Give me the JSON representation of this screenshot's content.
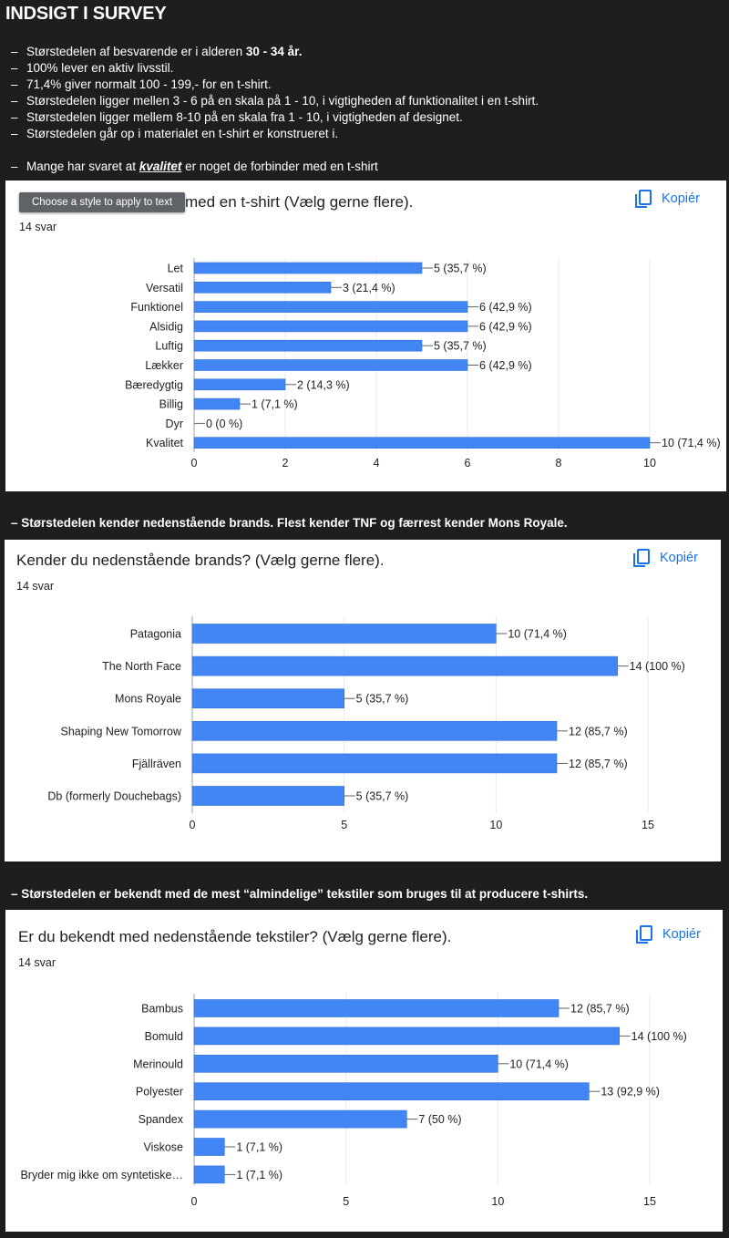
{
  "page": {
    "title": "INDSIGT I SURVEY",
    "bullets": [
      {
        "dash": "–",
        "pre": "Størstedelen af besvarende er i alderen ",
        "bold": "30 - 34 år.",
        "post": ""
      },
      {
        "dash": "–",
        "pre": "100% lever en aktiv livsstil.",
        "bold": "",
        "post": ""
      },
      {
        "dash": "–",
        "pre": "71,4% giver normalt 100 - 199,- for en t-shirt.",
        "bold": "",
        "post": ""
      },
      {
        "dash": "–",
        "pre": "Størstedelen ligger mellen 3 - 6 på en skala på 1 - 10, i vigtigheden af funktionalitet i en t-shirt.",
        "bold": "",
        "post": ""
      },
      {
        "dash": "–",
        "pre": "Størstedelen ligger mellem 8-10 på en skala fra 1 - 10, i vigtigheden af designet.",
        "bold": "",
        "post": ""
      },
      {
        "dash": "–",
        "pre": "Størstedelen går op i materialet en t-shirt er konstrueret i.",
        "bold": "",
        "post": ""
      },
      {
        "dash": "–",
        "pre": "Mange har svaret at ",
        "bold": "kvalitet",
        "post": " er noget de forbinder med en t-shirt"
      }
    ],
    "note2": "–  Størstedelen kender nedenstående brands. Flest kender TNF og færrest kender Mons Royale.",
    "note3": "–  Størstedelen er bekendt med de mest “almindelige” tekstiler som bruges til at producere t-shirts.",
    "tooltip": "Choose a style to apply to text",
    "copy_label": "Kopiér"
  },
  "colors": {
    "bar": "#4285f4",
    "bar_stroke": "#2f6ed6",
    "link": "#1a73e8",
    "grid": "#e8eaed",
    "axis": "#5f6368"
  },
  "cards": [
    {
      "title": "med en t-shirt (Vælg gerne flere).",
      "count": "14 svar"
    },
    {
      "title": "Kender du nedenstående brands? (Vælg gerne flere).",
      "count": "14 svar"
    },
    {
      "title": "Er du bekendt med nedenstående tekstiler? (Vælg gerne flere).",
      "count": "14 svar"
    }
  ],
  "chart_data": [
    {
      "type": "bar",
      "orientation": "horizontal",
      "categories": [
        "Let",
        "Versatil",
        "Funktionel",
        "Alsidig",
        "Luftig",
        "Lækker",
        "Bæredygtig",
        "Billig",
        "Dyr",
        "Kvalitet"
      ],
      "values": [
        5,
        3,
        6,
        6,
        5,
        6,
        2,
        1,
        0,
        10
      ],
      "data_labels": [
        "5 (35,7 %)",
        "3 (21,4 %)",
        "6 (42,9 %)",
        "6 (42,9 %)",
        "5 (35,7 %)",
        "6 (42,9 %)",
        "2 (14,3 %)",
        "1 (7,1 %)",
        "0 (0 %)",
        "10 (71,4 %)"
      ],
      "xlim": [
        0,
        10
      ],
      "xticks": [
        0,
        2,
        4,
        6,
        8,
        10
      ],
      "grid": true
    },
    {
      "type": "bar",
      "orientation": "horizontal",
      "categories": [
        "Patagonia",
        "The North Face",
        "Mons Royale",
        "Shaping New Tomorrow",
        "Fjällräven",
        "Db (formerly Douchebags)"
      ],
      "values": [
        10,
        14,
        5,
        12,
        12,
        5
      ],
      "data_labels": [
        "10 (71,4 %)",
        "14 (100 %)",
        "5 (35,7 %)",
        "12 (85,7 %)",
        "12 (85,7 %)",
        "5 (35,7 %)"
      ],
      "xlim": [
        0,
        15
      ],
      "xticks": [
        0,
        5,
        10,
        15
      ],
      "grid": true
    },
    {
      "type": "bar",
      "orientation": "horizontal",
      "categories": [
        "Bambus",
        "Bomuld",
        "Merinould",
        "Polyester",
        "Spandex",
        "Viskose",
        "Bryder mig ikke om syntetiske…"
      ],
      "values": [
        12,
        14,
        10,
        13,
        7,
        1,
        1
      ],
      "data_labels": [
        "12 (85,7 %)",
        "14 (100 %)",
        "10 (71,4 %)",
        "13 (92,9 %)",
        "7 (50 %)",
        "1 (7,1 %)",
        "1 (7,1 %)"
      ],
      "xlim": [
        0,
        15
      ],
      "xticks": [
        0,
        5,
        10,
        15
      ],
      "grid": true
    }
  ]
}
